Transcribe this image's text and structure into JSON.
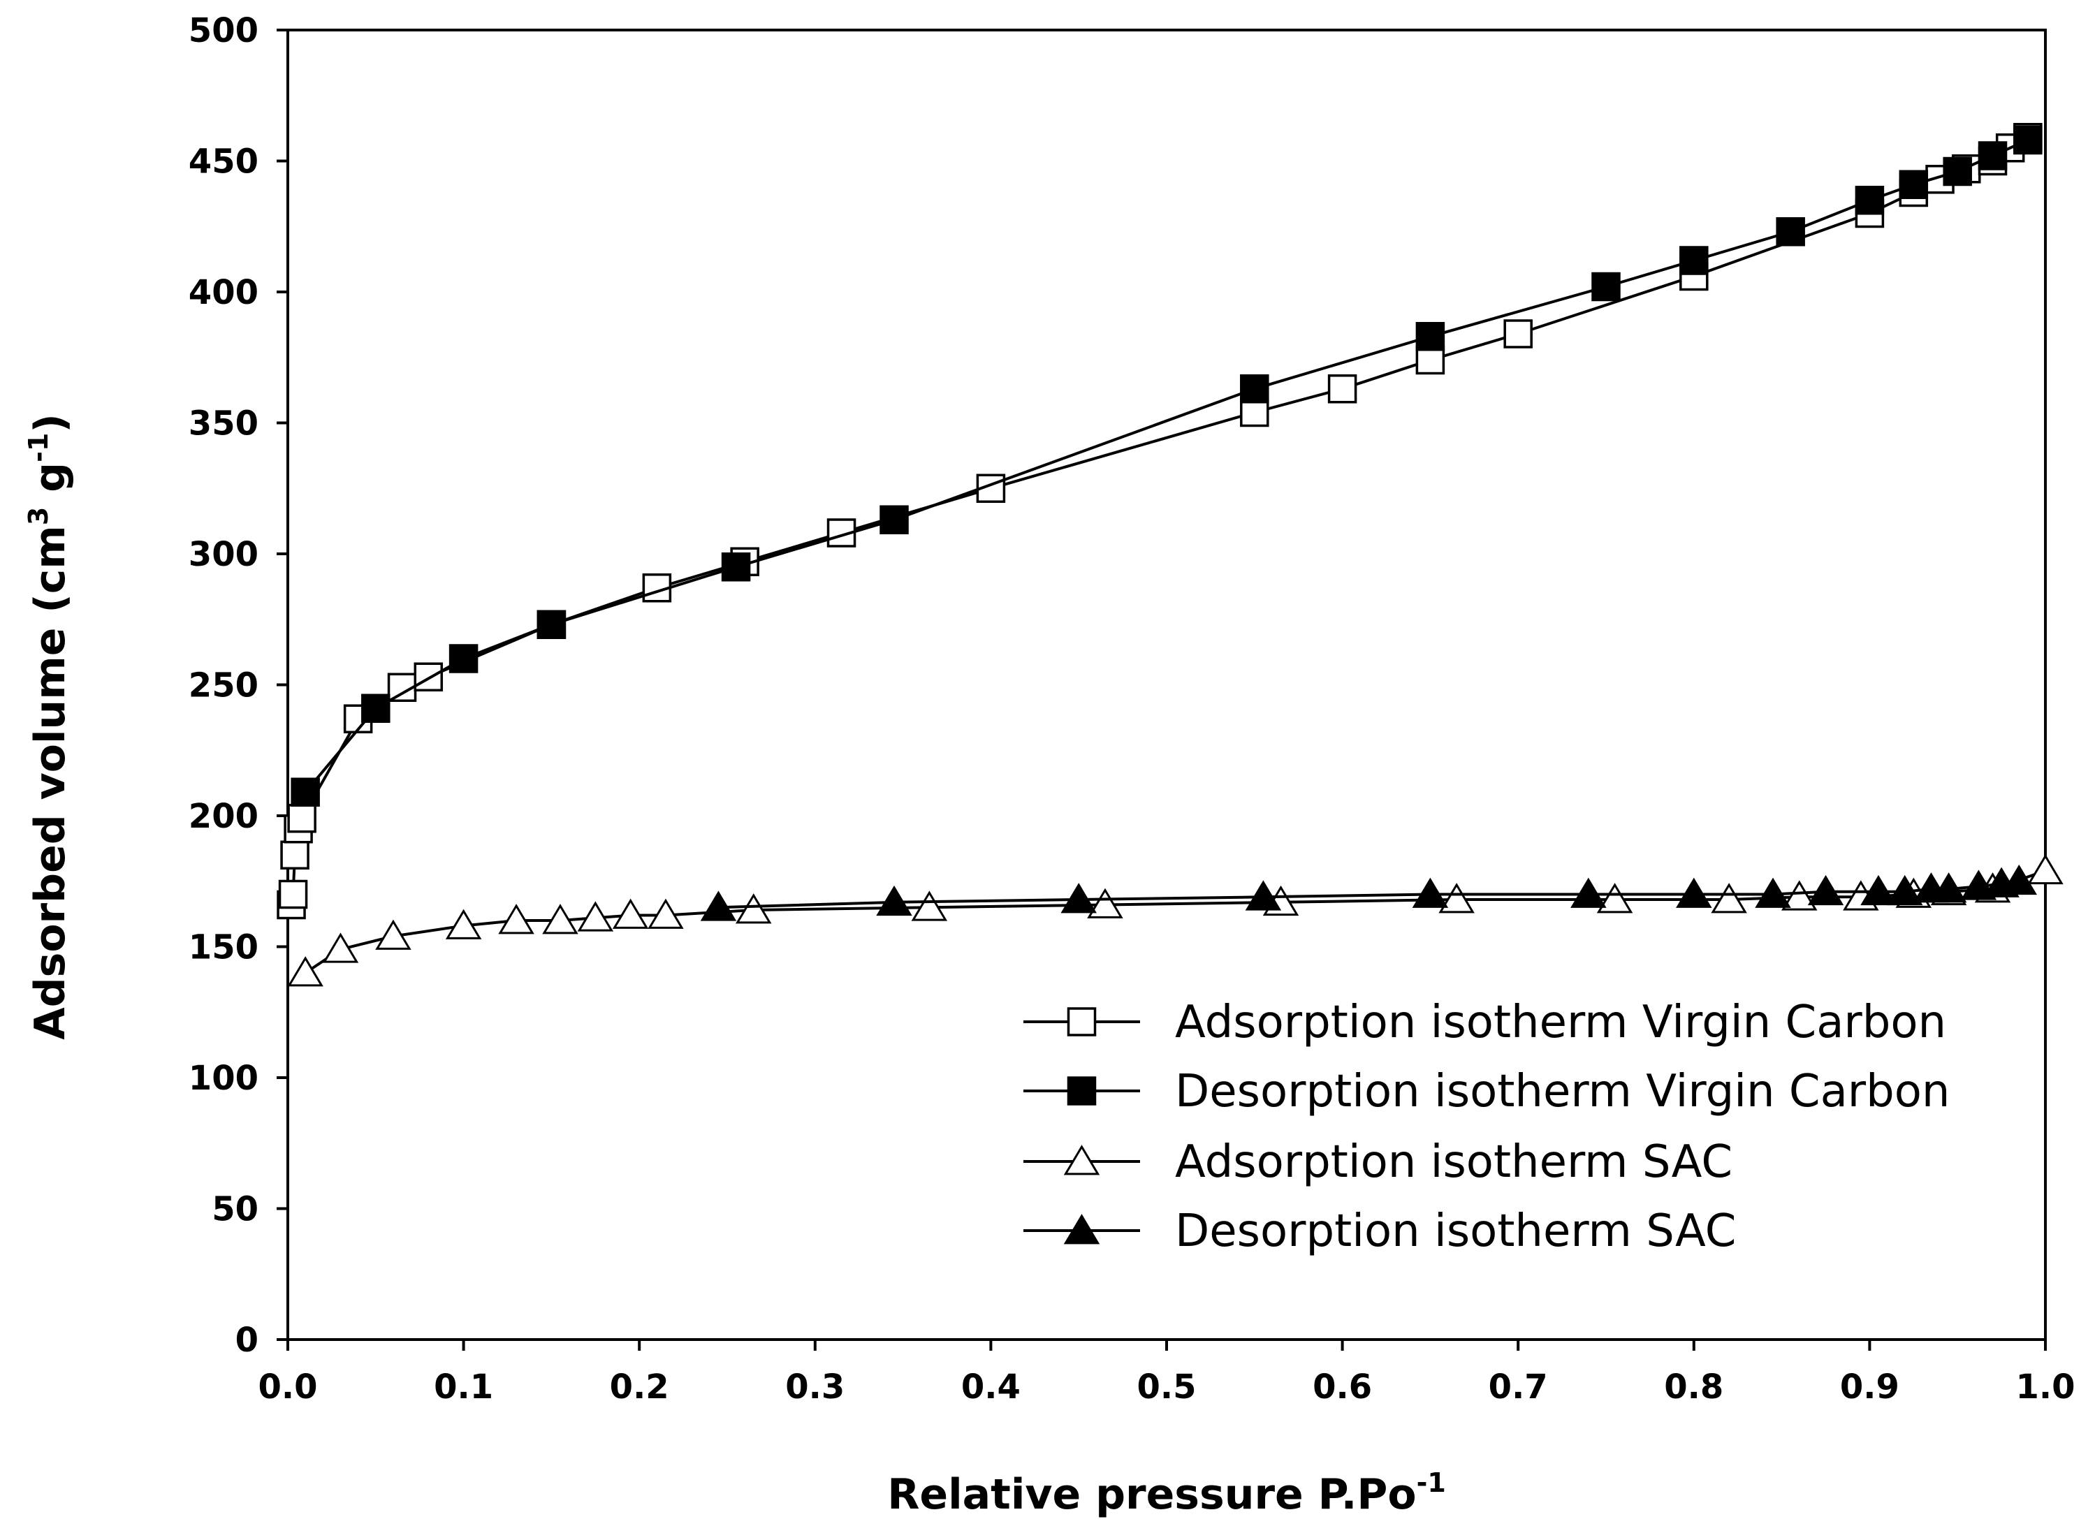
{
  "chart_data": {
    "type": "line",
    "xlabel": "Relative pressure P.Po",
    "xlabel_sup": "-1",
    "ylabel": "Adsorbed volume (cm",
    "ylabel_sup1": "3",
    "ylabel_mid": " g",
    "ylabel_sup2": "-1",
    "ylabel_close": ")",
    "xlim": [
      0.0,
      1.0
    ],
    "ylim": [
      0,
      500
    ],
    "x_ticks": [
      "0.0",
      "0.1",
      "0.2",
      "0.3",
      "0.4",
      "0.5",
      "0.6",
      "0.7",
      "0.8",
      "0.9",
      "1.0"
    ],
    "y_ticks": [
      "0",
      "50",
      "100",
      "150",
      "200",
      "250",
      "300",
      "350",
      "400",
      "450",
      "500"
    ],
    "grid": false,
    "legend_position": "lower-right",
    "series": [
      {
        "name": "Adsorption isotherm Virgin Carbon",
        "marker": "square-open",
        "x": [
          0.002,
          0.003,
          0.004,
          0.006,
          0.008,
          0.04,
          0.065,
          0.08,
          0.15,
          0.21,
          0.26,
          0.315,
          0.4,
          0.55,
          0.6,
          0.65,
          0.7,
          0.8,
          0.9,
          0.925,
          0.94,
          0.955,
          0.97,
          0.98,
          0.99
        ],
        "y": [
          166,
          170,
          185,
          195,
          199,
          237,
          249,
          253,
          273,
          287,
          297,
          308,
          325,
          354,
          363,
          374,
          384,
          406,
          430,
          438,
          443,
          447,
          450,
          455,
          459
        ]
      },
      {
        "name": "Desorption isotherm Virgin Carbon",
        "marker": "square-filled",
        "x": [
          0.99,
          0.97,
          0.95,
          0.925,
          0.9,
          0.855,
          0.8,
          0.75,
          0.65,
          0.55,
          0.345,
          0.255,
          0.15,
          0.1,
          0.05,
          0.01
        ],
        "y": [
          458,
          452,
          446,
          441,
          435,
          423,
          412,
          402,
          383,
          363,
          313,
          295,
          273,
          260,
          241,
          209
        ]
      },
      {
        "name": "Adsorption isotherm SAC",
        "marker": "triangle-open",
        "x": [
          0.01,
          0.03,
          0.06,
          0.1,
          0.13,
          0.155,
          0.175,
          0.195,
          0.215,
          0.265,
          0.365,
          0.465,
          0.565,
          0.665,
          0.755,
          0.82,
          0.86,
          0.895,
          0.925,
          0.945,
          0.97,
          1.0
        ],
        "y": [
          140,
          149,
          154,
          158,
          160,
          160,
          161,
          162,
          162,
          164,
          165,
          166,
          167,
          168,
          168,
          168,
          169,
          169,
          170,
          171,
          172,
          179
        ]
      },
      {
        "name": "Desorption isotherm SAC",
        "marker": "triangle-filled",
        "x": [
          0.985,
          0.975,
          0.962,
          0.945,
          0.935,
          0.92,
          0.905,
          0.875,
          0.845,
          0.8,
          0.74,
          0.65,
          0.555,
          0.45,
          0.345,
          0.245
        ],
        "y": [
          175,
          174,
          173,
          172,
          172,
          171,
          171,
          171,
          170,
          170,
          170,
          170,
          169,
          168,
          167,
          165
        ]
      }
    ]
  }
}
